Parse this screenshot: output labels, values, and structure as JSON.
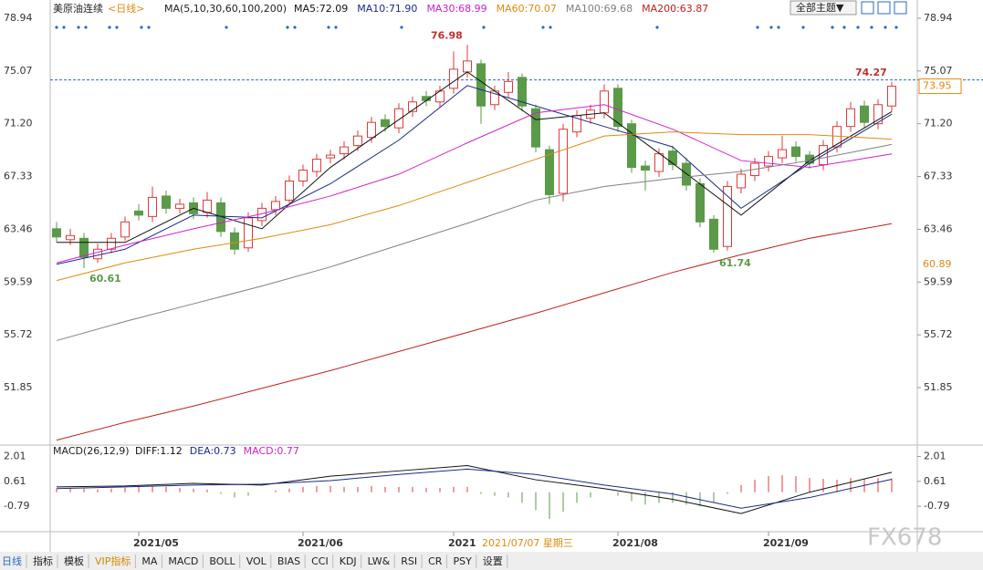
{
  "chart_data": {
    "type": "candlestick",
    "title": "美原油连续",
    "period": "<日线>",
    "ma_params": "MA(5,10,30,60,100,200)",
    "categories": [
      null,
      null,
      null,
      null,
      null,
      null,
      "2021/05",
      null,
      null,
      null,
      null,
      null,
      null,
      null,
      null,
      null,
      null,
      null,
      "2021/06",
      null,
      null,
      null,
      null,
      null,
      null,
      null,
      null,
      null,
      null,
      "2021",
      null,
      null,
      null,
      null,
      null,
      null,
      null,
      null,
      null,
      null,
      null,
      "2021/08",
      null,
      null,
      null,
      null,
      null,
      null,
      null,
      null,
      null,
      null,
      "2021/09",
      null,
      null,
      null,
      null,
      null,
      null,
      null,
      null,
      null
    ],
    "crosshair_date": "2021/07/07 星期三",
    "open": [
      63.5,
      62.7,
      62.8,
      61.3,
      62.0,
      62.9,
      64.8,
      64.4,
      65.9,
      65.0,
      65.4,
      64.7,
      65.4,
      63.2,
      62.1,
      64.1,
      64.9,
      65.6,
      67.0,
      67.7,
      68.7,
      69.0,
      69.6,
      70.2,
      71.5,
      70.9,
      72.1,
      73.2,
      72.8,
      73.8,
      75.0,
      75.6,
      72.6,
      73.5,
      74.6,
      72.3,
      69.3,
      66.1,
      70.6,
      71.6,
      72.0,
      73.8,
      71.2,
      68.1,
      67.7,
      69.2,
      68.3,
      66.8,
      64.2,
      62.2,
      66.5,
      67.4,
      68.1,
      68.7,
      69.5,
      68.9,
      68.2,
      69.5,
      71.0,
      72.5,
      71.2,
      72.5
    ],
    "high": [
      64.0,
      63.5,
      63.2,
      62.4,
      63.2,
      64.4,
      65.3,
      66.6,
      66.3,
      65.7,
      65.8,
      66.2,
      65.8,
      63.6,
      64.7,
      65.4,
      65.9,
      67.4,
      68.2,
      69.0,
      69.3,
      69.9,
      70.7,
      71.7,
      71.9,
      72.7,
      73.2,
      73.6,
      74.0,
      76.5,
      76.98,
      75.9,
      74.0,
      75.0,
      74.9,
      72.6,
      69.6,
      71.2,
      72.2,
      72.6,
      74.1,
      74.1,
      71.5,
      68.5,
      69.4,
      69.6,
      68.7,
      67.2,
      64.5,
      67.0,
      67.9,
      68.7,
      69.2,
      70.3,
      69.9,
      69.2,
      70.0,
      71.4,
      72.8,
      72.9,
      73.0,
      74.27
    ],
    "low": [
      62.5,
      62.3,
      60.61,
      61.0,
      61.7,
      62.6,
      64.1,
      64.0,
      64.6,
      64.6,
      64.2,
      64.3,
      62.9,
      61.6,
      61.8,
      63.7,
      64.5,
      65.2,
      66.6,
      67.3,
      68.3,
      68.6,
      69.2,
      69.8,
      70.6,
      70.5,
      71.7,
      72.5,
      72.4,
      73.4,
      74.6,
      71.2,
      72.2,
      73.1,
      72.1,
      69.1,
      65.3,
      65.5,
      70.2,
      71.2,
      71.6,
      70.6,
      67.6,
      66.3,
      67.3,
      67.8,
      66.3,
      63.6,
      61.74,
      61.9,
      66.1,
      67.0,
      67.7,
      68.3,
      68.4,
      67.9,
      67.8,
      69.1,
      70.6,
      70.9,
      70.8,
      72.1
    ],
    "close": [
      62.9,
      63.0,
      61.4,
      62.0,
      62.8,
      64.0,
      64.5,
      65.8,
      65.0,
      65.3,
      64.6,
      65.6,
      63.3,
      62.0,
      64.3,
      65.0,
      65.5,
      67.0,
      67.8,
      68.6,
      68.9,
      69.5,
      70.3,
      71.3,
      71.0,
      72.3,
      72.8,
      72.9,
      73.6,
      75.2,
      75.8,
      72.5,
      73.6,
      74.3,
      72.5,
      69.5,
      66.0,
      70.8,
      71.8,
      72.2,
      73.6,
      71.0,
      68.0,
      67.8,
      69.0,
      68.2,
      66.7,
      64.0,
      62.0,
      66.6,
      67.5,
      68.3,
      68.8,
      69.3,
      68.8,
      68.3,
      69.6,
      71.0,
      72.3,
      71.3,
      72.6,
      73.95
    ],
    "up_color": "#e03a3a",
    "down_color": "#5a9a48",
    "series": [
      {
        "name": "MA5:72.09",
        "color": "#111111",
        "x": [
          0,
          5,
          10,
          15,
          20,
          25,
          30,
          35,
          40,
          45,
          50,
          55,
          61
        ],
        "values": [
          62.5,
          62.5,
          65.0,
          63.5,
          68.0,
          71.5,
          75.0,
          71.5,
          72.0,
          68.3,
          64.5,
          68.5,
          72.09
        ]
      },
      {
        "name": "MA10:71.90",
        "color": "#1a2a8a",
        "x": [
          0,
          5,
          10,
          15,
          20,
          25,
          30,
          35,
          40,
          45,
          50,
          55,
          61
        ],
        "values": [
          60.9,
          62.0,
          64.5,
          64.3,
          66.8,
          70.0,
          74.0,
          72.5,
          71.0,
          69.5,
          65.0,
          68.3,
          71.9
        ]
      },
      {
        "name": "MA30:68.99",
        "color": "#d020d0",
        "x": [
          0,
          5,
          10,
          15,
          20,
          25,
          30,
          35,
          40,
          45,
          50,
          55,
          61
        ],
        "values": [
          61.0,
          62.3,
          63.5,
          64.6,
          65.9,
          67.5,
          69.8,
          72.0,
          72.6,
          70.8,
          68.5,
          68.0,
          68.99
        ]
      },
      {
        "name": "MA60:70.07",
        "color": "#e08a10",
        "x": [
          0,
          5,
          10,
          15,
          20,
          25,
          30,
          35,
          40,
          45,
          50,
          55,
          61
        ],
        "values": [
          59.7,
          61.0,
          62.0,
          62.8,
          63.8,
          65.2,
          66.9,
          68.6,
          70.3,
          70.6,
          70.4,
          70.4,
          70.07
        ]
      },
      {
        "name": "MA100:69.68",
        "color": "#808080",
        "x": [
          0,
          5,
          10,
          15,
          20,
          25,
          30,
          35,
          40,
          45,
          50,
          55,
          61
        ],
        "values": [
          55.3,
          56.7,
          58.0,
          59.3,
          60.7,
          62.3,
          63.9,
          65.6,
          66.6,
          67.2,
          67.7,
          68.5,
          69.68
        ]
      },
      {
        "name": "MA200:63.87",
        "color": "#c02020",
        "x": [
          0,
          5,
          10,
          15,
          20,
          25,
          30,
          35,
          40,
          45,
          50,
          55,
          61
        ],
        "values": [
          48.0,
          49.3,
          50.5,
          51.8,
          53.1,
          54.5,
          55.9,
          57.3,
          58.8,
          60.3,
          61.6,
          62.8,
          63.87
        ]
      }
    ],
    "annotations": [
      {
        "index": 30,
        "value": 76.98,
        "color": "#c03030"
      },
      {
        "index": 2,
        "value": 60.61,
        "color": "#5a9a48"
      },
      {
        "index": 48,
        "value": 61.74,
        "color": "#5a9a48"
      },
      {
        "index": 61,
        "value": 74.27,
        "color": "#c03030"
      }
    ],
    "price_tags": [
      {
        "value": 73.95,
        "color": "#e08a10"
      },
      {
        "value": 60.89,
        "color": "#e08a10"
      }
    ],
    "ylim": [
      47.84,
      79.94
    ],
    "yticks": [
      51.85,
      55.72,
      59.59,
      63.46,
      67.33,
      {
        "value": 71.2,
        "label": "71.20"
      },
      75.07,
      78.94
    ],
    "macd": {
      "title": "MACD(26,12,9)",
      "ylim": [
        -2.17,
        2.55
      ],
      "yticks": [
        -0.79,
        0.61,
        2.01
      ],
      "series": [
        {
          "name": "DIFF:1.12",
          "color": "#111111",
          "x": [
            0,
            5,
            10,
            15,
            20,
            25,
            30,
            35,
            40,
            45,
            50,
            55,
            61
          ],
          "values": [
            0.3,
            0.35,
            0.5,
            0.4,
            0.9,
            1.2,
            1.5,
            0.7,
            0.2,
            -0.4,
            -1.2,
            0.0,
            1.12
          ]
        },
        {
          "name": "DEA:0.73",
          "color": "#1a2a8a",
          "x": [
            0,
            5,
            10,
            15,
            20,
            25,
            30,
            35,
            40,
            45,
            50,
            55,
            61
          ],
          "values": [
            0.2,
            0.3,
            0.4,
            0.45,
            0.65,
            1.0,
            1.3,
            1.0,
            0.4,
            -0.1,
            -0.9,
            -0.3,
            0.73
          ]
        }
      ],
      "hist_name": "MACD:0.77",
      "hist_color": "#d020d0",
      "hist": [
        0.2,
        0.25,
        0.2,
        0.15,
        0.2,
        0.25,
        0.3,
        0.35,
        0.3,
        0.25,
        0.2,
        0.15,
        -0.1,
        -0.3,
        -0.2,
        0.0,
        0.1,
        0.2,
        0.3,
        0.35,
        0.35,
        0.3,
        0.3,
        0.35,
        0.3,
        0.3,
        0.3,
        0.25,
        0.25,
        0.3,
        0.3,
        -0.1,
        -0.2,
        -0.3,
        -0.6,
        -1.0,
        -1.5,
        -1.1,
        -0.6,
        -0.3,
        0.0,
        -0.2,
        -0.5,
        -0.7,
        -0.6,
        -0.6,
        -0.7,
        -0.8,
        -0.6,
        -0.1,
        0.4,
        0.7,
        0.9,
        0.95,
        0.9,
        0.8,
        0.75,
        0.7,
        0.8,
        0.75,
        0.8,
        0.77
      ]
    }
  },
  "toolbar": {
    "theme": "全部主题▼",
    "watermark": "FX678",
    "tabs": [
      "日线",
      "指标",
      "模板",
      "VIP指标",
      "MA",
      "MACD",
      "BOLL",
      "VOL",
      "BIAS",
      "CCI",
      "KDJ",
      "LW&",
      "RSI",
      "CR",
      "PSY",
      "设置"
    ]
  }
}
